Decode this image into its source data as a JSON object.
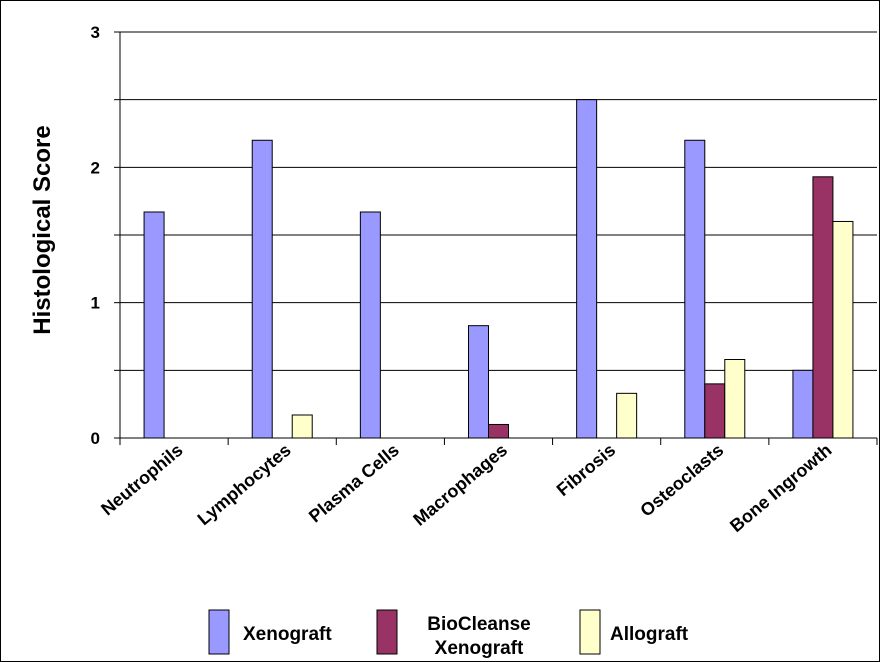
{
  "chart_data": {
    "type": "bar",
    "title": "",
    "xlabel": "",
    "ylabel": "Histological Score",
    "ylim": [
      0,
      3
    ],
    "yticks": [
      "0",
      "1",
      "2",
      "3"
    ],
    "grid": true,
    "legend_position": "bottom",
    "categories": [
      "Neutrophils",
      "Lymphocytes",
      "Plasma Cells",
      "Macrophages",
      "Fibrosis",
      "Osteoclasts",
      "Bone Ingrowth"
    ],
    "series": [
      {
        "name": "Xenograft",
        "color": "#9999ff",
        "values": [
          1.67,
          2.2,
          1.67,
          0.83,
          2.5,
          2.2,
          0.5
        ]
      },
      {
        "name": "BioCleanse Xenograft",
        "legend_lines": [
          "BioCleanse",
          "Xenograft"
        ],
        "color": "#993366",
        "values": [
          0,
          0,
          0,
          0.1,
          0,
          0.4,
          1.93
        ]
      },
      {
        "name": "Allograft",
        "color": "#ffffcc",
        "values": [
          0,
          0.17,
          0,
          0,
          0.33,
          0.58,
          1.6
        ]
      }
    ]
  }
}
